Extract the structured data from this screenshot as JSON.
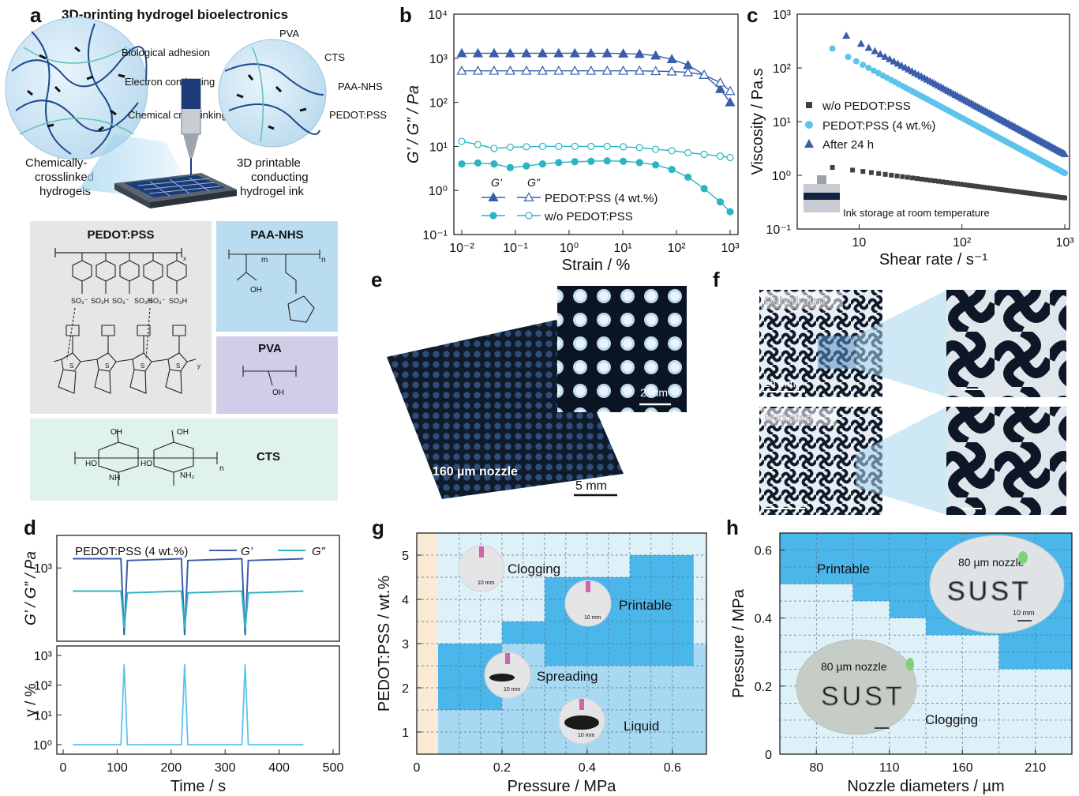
{
  "panel_letters": [
    "a",
    "b",
    "c",
    "d",
    "e",
    "f",
    "g",
    "h"
  ],
  "panel_a": {
    "title": "3D-printing hydrogel bioelectronics",
    "left_circle_labels": [
      "Biological adhesion",
      "Electron conducting",
      "Chemical crosslinking"
    ],
    "right_circle_labels": [
      "PVA",
      "CTS",
      "PAA-NHS",
      "PEDOT:PSS"
    ],
    "hydrogel_caption": [
      "Chemically-",
      "crosslinked",
      "hydrogels"
    ],
    "ink_caption": [
      "3D printable",
      "conducting",
      "hydrogel ink"
    ],
    "structures": {
      "pedot_pss": "PEDOT:PSS",
      "paa_nhs": "PAA-NHS",
      "pva": "PVA",
      "cts": "CTS",
      "so3_labels": [
        "SO₃⁻",
        "SO₃H",
        "SO₃⁻",
        "SO₃H",
        "SO₃⁻",
        "SO₃H"
      ],
      "atom_labels": [
        "OH",
        "HO",
        "NH₂",
        "NH",
        "O",
        "S",
        "n",
        "m",
        "x",
        "y"
      ]
    }
  },
  "panel_e": {
    "scale_bar": "5 mm",
    "inset_scale_bar": "2 mm",
    "nozzle_label": "160 µm nozzle"
  },
  "panel_f": {
    "top_label": "Dehydrated",
    "bottom_label": "Hydrated",
    "scale_bar": "20 mm"
  },
  "colors": {
    "dark_blue": "#3a5eab",
    "teal": "#2ab4c4",
    "light_blue": "#5cc3ec",
    "gray_square": "#404040",
    "g_light": "#dff1f8",
    "g_mid": "#a7daf2",
    "g_dark": "#4bb6e9",
    "g_tan": "#fbebd6"
  },
  "chart_data": [
    {
      "panel": "b",
      "type": "line",
      "xlabel": "Strain / %",
      "ylabel": "G’ / G” / Pa",
      "xscale": "log",
      "yscale": "log",
      "xlim": [
        0.01,
        1000
      ],
      "ylim": [
        0.1,
        10000
      ],
      "xticks": [
        "10⁻²",
        "10⁻¹",
        "10⁰",
        "10¹",
        "10²",
        "10³"
      ],
      "yticks": [
        "10⁻¹",
        "10⁰",
        "10¹",
        "10²",
        "10³",
        "10⁴"
      ],
      "legend_headers": [
        "G’",
        "G”"
      ],
      "x": [
        0.01,
        0.02,
        0.04,
        0.08,
        0.16,
        0.32,
        0.64,
        1.28,
        2.56,
        5.12,
        10.2,
        20.5,
        41,
        82,
        164,
        328,
        655,
        1000
      ],
      "series": [
        {
          "name": "PEDOT:PSS (4 wt.%)",
          "modulus": "G’",
          "values": [
            1300,
            1300,
            1300,
            1300,
            1300,
            1300,
            1300,
            1300,
            1300,
            1300,
            1280,
            1250,
            1150,
            950,
            700,
            420,
            200,
            100
          ]
        },
        {
          "name": "PEDOT:PSS (4 wt.%)",
          "modulus": "G”",
          "values": [
            520,
            520,
            520,
            520,
            520,
            520,
            520,
            520,
            520,
            520,
            520,
            520,
            510,
            500,
            480,
            420,
            280,
            180
          ]
        },
        {
          "name": "w/o PEDOT:PSS",
          "modulus": "G’",
          "values": [
            4.0,
            4.2,
            4.0,
            3.3,
            3.6,
            4.0,
            4.3,
            4.5,
            4.6,
            4.7,
            4.6,
            4.3,
            3.8,
            3.0,
            2.0,
            1.1,
            0.55,
            0.33
          ]
        },
        {
          "name": "w/o PEDOT:PSS",
          "modulus": "G”",
          "values": [
            13,
            11,
            9.0,
            9.6,
            9.8,
            10,
            10,
            10,
            10,
            10,
            9.8,
            9.4,
            8.6,
            8.0,
            7.2,
            6.6,
            6.0,
            5.6
          ]
        }
      ]
    },
    {
      "panel": "c",
      "type": "scatter",
      "xlabel": "Shear rate / s⁻¹",
      "ylabel": "Viscosity / Pa.s",
      "xscale": "log",
      "yscale": "log",
      "xlim": [
        2.5,
        1000
      ],
      "ylim": [
        0.1,
        1000
      ],
      "xticks": [
        "10",
        "10²",
        "10³"
      ],
      "yticks": [
        "10⁻¹",
        "10⁰",
        "10¹",
        "10²",
        "10³"
      ],
      "annotation": "Ink storage at room temperature",
      "series": [
        {
          "name": "w/o PEDOT:PSS",
          "x_range": [
            5.5,
            1000
          ],
          "y_range": [
            1.4,
            0.38
          ]
        },
        {
          "name": "PEDOT:PSS (4 wt.%)",
          "x_range": [
            5.5,
            1000
          ],
          "y_range": [
            230,
            1.1
          ]
        },
        {
          "name": "After 24 h",
          "x_range": [
            7.5,
            1000
          ],
          "y_range": [
            400,
            2.5
          ]
        }
      ]
    },
    {
      "panel": "d",
      "type": "line",
      "xlabel": "Time / s",
      "ylabel_top": "G’ / G” / Pa",
      "ylabel_bottom": "γ / %",
      "xlim": [
        0,
        500
      ],
      "xticks": [
        "0",
        "100",
        "200",
        "300",
        "400",
        "500"
      ],
      "yticks_top": [
        "10³"
      ],
      "yticks_bottom": [
        "10⁰",
        "10¹",
        "10²",
        "10³"
      ],
      "legend_title": "PEDOT:PSS (4 wt.%)",
      "series": [
        {
          "name": "G’",
          "baseline": 1300,
          "dips_at": [
            113,
            225,
            337
          ]
        },
        {
          "name": "G”",
          "baseline": 520,
          "dips_at": [
            113,
            225,
            337
          ]
        },
        {
          "name": "γ",
          "baseline": 1,
          "peak": 500,
          "peaks_at": [
            113,
            225,
            337
          ]
        }
      ]
    },
    {
      "panel": "g",
      "type": "heatmap",
      "xlabel": "Pressure / MPa",
      "ylabel": "PEDOT:PSS / wt.%",
      "xticks": [
        "0",
        "0.2",
        "0.4",
        "0.6"
      ],
      "yticks": [
        "1",
        "2",
        "3",
        "4",
        "5"
      ],
      "regions": [
        "Clogging",
        "Printable",
        "Spreading",
        "Liquid"
      ],
      "inset_scale": "10 mm"
    },
    {
      "panel": "h",
      "type": "heatmap",
      "xlabel": "Nozzle diameters / µm",
      "ylabel": "Pressure / MPa",
      "xticks": [
        "80",
        "110",
        "160",
        "210"
      ],
      "yticks": [
        "0",
        "0.2",
        "0.4",
        "0.6"
      ],
      "regions": [
        "Printable",
        "Clogging"
      ],
      "inset_labels": [
        "80 µm nozzle",
        "80 µm nozzle"
      ],
      "inset_text": "SUST",
      "inset_scale": "10 mm"
    }
  ]
}
